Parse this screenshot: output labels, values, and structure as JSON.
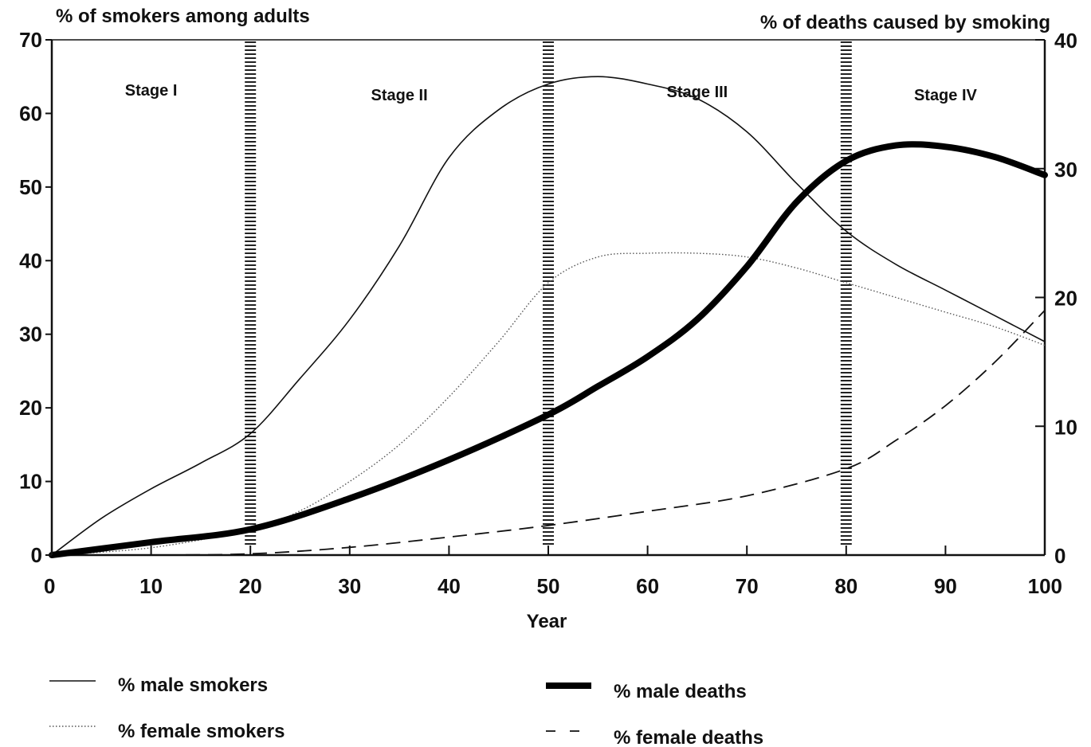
{
  "chart_data": {
    "type": "line",
    "left_axis_label": "% of smokers among adults",
    "right_axis_label": "% of deaths caused by smoking",
    "xlabel": "Year",
    "xlim": [
      0,
      100
    ],
    "ylim_left": [
      0,
      70
    ],
    "ylim_right": [
      0,
      40
    ],
    "x_ticks": [
      "0",
      "10",
      "20",
      "30",
      "40",
      "50",
      "60",
      "70",
      "80",
      "90",
      "100"
    ],
    "y_left_ticks": [
      "0",
      "10",
      "20",
      "30",
      "40",
      "50",
      "60",
      "70"
    ],
    "y_right_ticks": [
      "0",
      "10",
      "20",
      "30",
      "40"
    ],
    "stage_boundaries": [
      20,
      50,
      80
    ],
    "stages": [
      {
        "label": "Stage I",
        "x": 10
      },
      {
        "label": "Stage II",
        "x": 35
      },
      {
        "label": "Stage III",
        "x": 65
      },
      {
        "label": "Stage IV",
        "x": 90
      }
    ],
    "series": [
      {
        "name": "% male smokers",
        "axis": "left",
        "style": "thin",
        "x": [
          0,
          5,
          10,
          15,
          20,
          25,
          30,
          35,
          40,
          45,
          50,
          55,
          60,
          65,
          70,
          75,
          80,
          85,
          90,
          95,
          100
        ],
        "values": [
          0,
          5,
          9,
          12.5,
          16.5,
          24,
          32,
          42,
          54,
          60.5,
          64,
          65,
          64,
          62,
          57.5,
          50.5,
          44,
          39.5,
          36,
          32.5,
          29
        ]
      },
      {
        "name": "% female smokers",
        "axis": "left",
        "style": "dotted",
        "x": [
          0,
          10,
          20,
          25,
          30,
          35,
          40,
          45,
          50,
          55,
          60,
          65,
          70,
          75,
          80,
          85,
          90,
          95,
          100
        ],
        "values": [
          0,
          1,
          3.5,
          6,
          10,
          15,
          21.5,
          29,
          37,
          40.5,
          41,
          41,
          40.5,
          39,
          37,
          35,
          33,
          31,
          28.5
        ]
      },
      {
        "name": "% male deaths",
        "axis": "right",
        "style": "thick",
        "x": [
          0,
          10,
          20,
          30,
          40,
          50,
          55,
          60,
          65,
          70,
          75,
          80,
          85,
          90,
          95,
          100
        ],
        "values": [
          0,
          1,
          2,
          4.4,
          7.4,
          10.9,
          13.1,
          15.4,
          18.3,
          22.4,
          27.4,
          30.6,
          31.8,
          31.7,
          30.9,
          29.5
        ]
      },
      {
        "name": "% female deaths",
        "axis": "right",
        "style": "dashed",
        "x": [
          0,
          10,
          20,
          30,
          40,
          50,
          60,
          70,
          80,
          85,
          90,
          95,
          100
        ],
        "values": [
          0,
          0,
          0.1,
          0.6,
          1.4,
          2.3,
          3.4,
          4.6,
          6.7,
          8.9,
          11.6,
          15,
          19
        ]
      }
    ]
  }
}
